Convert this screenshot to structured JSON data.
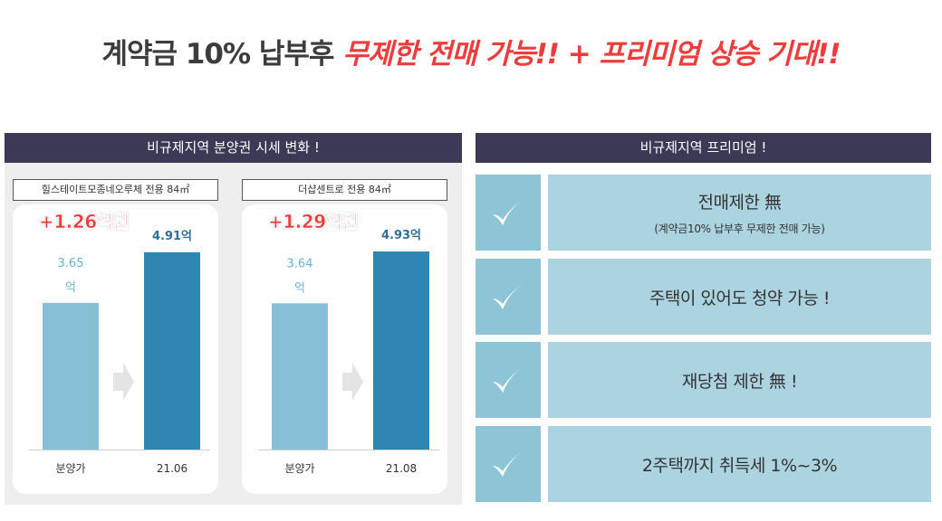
{
  "headline": {
    "plain": "계약금 10% 납부후",
    "accent": "무제한 전매 가능!! + 프리미엄 상승 기대!!"
  },
  "left_panel": {
    "title": "비규제지역 분양권 시세 변화 !"
  },
  "right_panel": {
    "title": "비규제지역 프리미엄 !",
    "rows": [
      {
        "main": "전매제한 無",
        "sub": "(계약금10% 납부후 무제한 전매 가능)"
      },
      {
        "main": "주택이 있어도 청약 가능 !",
        "sub": ""
      },
      {
        "main": "재당첨 제한 無 !",
        "sub": ""
      },
      {
        "main": "2주택까지 취득세 1%~3%",
        "sub": ""
      }
    ]
  },
  "colors": {
    "navy": "#3b3955",
    "accent_red": "#ee3b3b",
    "bar_light": "#86bfd6",
    "bar_dark": "#2e86b2",
    "check_bg": "#8ec5d6",
    "text_bg": "#acd3e0"
  },
  "icons": {
    "row_icon": "checkmark-icon",
    "between_bars": "arrow-right-icon"
  },
  "chart_data": [
    {
      "type": "bar",
      "title": "힐스테이트모종네오루체 전용 84㎡",
      "categories": [
        "분양가",
        "21.06"
      ],
      "values": [
        3.65,
        4.91
      ],
      "data_labels": [
        "3.65\n억",
        "4.91억"
      ],
      "annotation": "+1.26억원",
      "ylim": [
        0,
        6.1
      ]
    },
    {
      "type": "bar",
      "title": "더샵센트로 전용 84㎡",
      "categories": [
        "분양가",
        "21.08"
      ],
      "values": [
        3.64,
        4.93
      ],
      "data_labels": [
        "3.64\n억",
        "4.93억"
      ],
      "annotation": "+1.29억원",
      "ylim": [
        0,
        6.1
      ]
    }
  ]
}
